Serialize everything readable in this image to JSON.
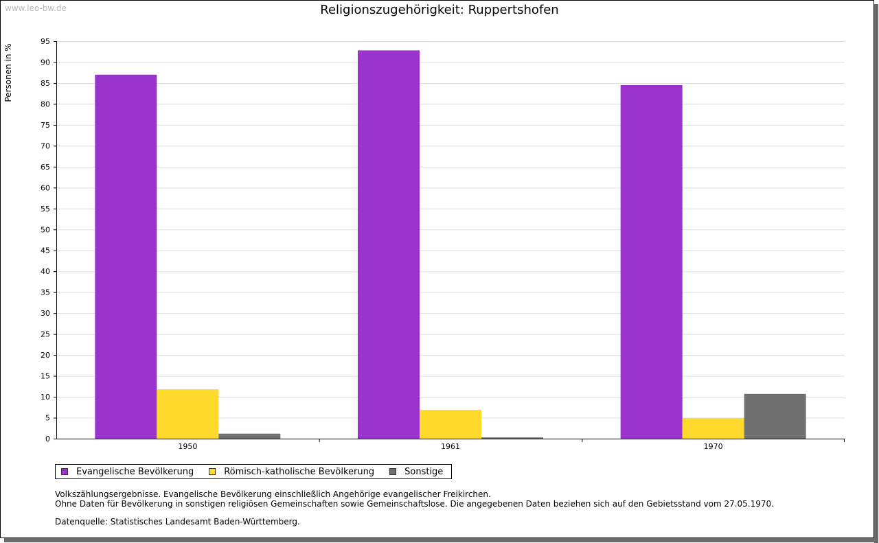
{
  "watermark": "www.leo-bw.de",
  "colors": {
    "evangelisch": "#9933cc",
    "katholisch": "#ffd92b",
    "sonstige": "#707070",
    "grid": "#dddddd",
    "axis": "#000000"
  },
  "chart_data": {
    "type": "bar",
    "title": "Religionszugehörigkeit: Ruppertshofen",
    "xlabel": "",
    "ylabel": "Personen in %",
    "ylim": [
      0,
      95
    ],
    "yticks": [
      0,
      5,
      10,
      15,
      20,
      25,
      30,
      35,
      40,
      45,
      50,
      55,
      60,
      65,
      70,
      75,
      80,
      85,
      90,
      95
    ],
    "grid": true,
    "legend_position": "bottom-left",
    "categories": [
      "1950",
      "1961",
      "1970"
    ],
    "series": [
      {
        "name": "Evangelische Bevölkerung",
        "color_key": "evangelisch",
        "values": [
          87.0,
          92.8,
          84.5
        ]
      },
      {
        "name": "Römisch-katholische Bevölkerung",
        "color_key": "katholisch",
        "values": [
          11.8,
          6.9,
          4.9
        ]
      },
      {
        "name": "Sonstige",
        "color_key": "sonstige",
        "values": [
          1.2,
          0.3,
          10.7
        ]
      }
    ]
  },
  "notes": {
    "line1": "Volkszählungsergebnisse. Evangelische Bevölkerung einschließlich Angehörige evangelischer Freikirchen.",
    "line2": "Ohne Daten für Bevölkerung in sonstigen religiösen Gemeinschaften sowie Gemeinschaftslose. Die angegebenen Daten beziehen sich auf den Gebietsstand vom 27.05.1970.",
    "source": "Datenquelle: Statistisches Landesamt Baden-Württemberg."
  }
}
